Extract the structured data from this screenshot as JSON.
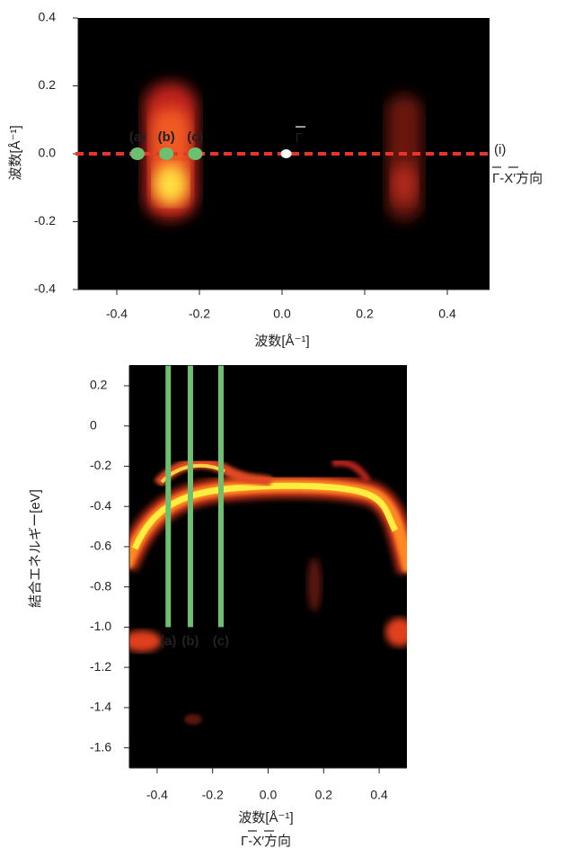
{
  "chart_data": [
    {
      "type": "heatmap",
      "x_label": "波数[Å⁻¹]",
      "y_label": "波数[Å⁻¹]",
      "xlim": [
        -0.5,
        0.5
      ],
      "ylim": [
        -0.4,
        0.4
      ],
      "xticks": [
        -0.4,
        -0.2,
        {
          "value": 0,
          "label": "0.0"
        },
        0.2,
        0.4
      ],
      "yticks": [
        -0.4,
        -0.2,
        {
          "value": 0,
          "label": "0.0"
        },
        0.2,
        0.4
      ],
      "markers": {
        "labels": [
          "(a)",
          "(b)",
          "(c)"
        ],
        "x": [
          -0.35,
          -0.28,
          -0.21
        ],
        "y": [
          0,
          0,
          0
        ],
        "color": "#6cc070"
      },
      "gamma": {
        "label": "Γ",
        "x": 0.01,
        "y": 0,
        "color": "#ffffff"
      },
      "cut_line": {
        "y": 0,
        "label": "(i)",
        "direction": "Γ-X′方向",
        "color": "#e8342a"
      }
    },
    {
      "type": "heatmap",
      "x_label": "波数[Å⁻¹]",
      "y_label": "結合エネルギー[eV]",
      "direction": "Γ-X′方向",
      "xlim": [
        -0.5,
        0.5
      ],
      "ylim": [
        -1.7,
        0.3
      ],
      "xticks": [
        -0.4,
        -0.2,
        {
          "value": 0,
          "label": "0.0"
        },
        0.2,
        0.4
      ],
      "yticks": [
        0.2,
        0,
        -0.2,
        -0.4,
        -0.6,
        -0.8,
        {
          "value": -1,
          "label": "-1.0"
        },
        -1.2,
        -1.4,
        -1.6
      ],
      "cuts": {
        "labels": [
          "(a)",
          "(b)",
          "(c)"
        ],
        "x": [
          -0.36,
          -0.28,
          -0.17
        ],
        "bottom": -1,
        "color": "#6cc070"
      }
    }
  ]
}
